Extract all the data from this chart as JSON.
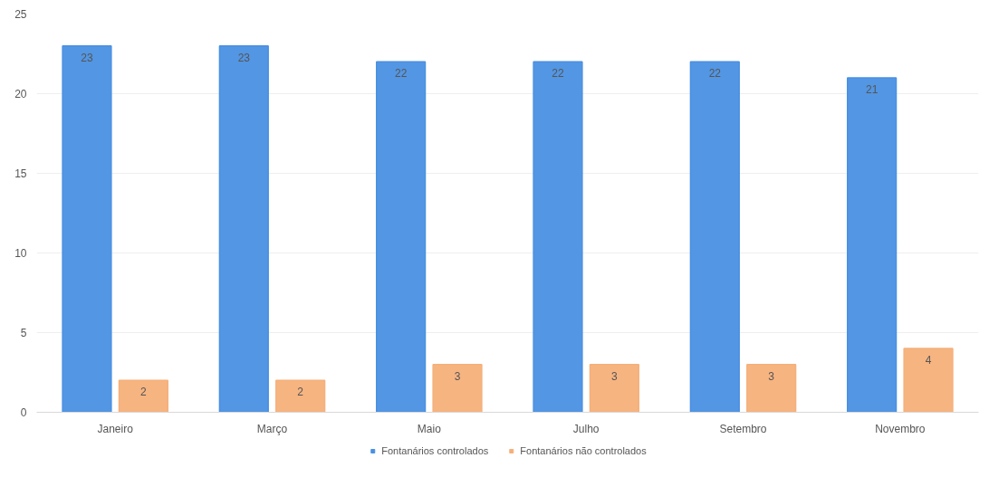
{
  "chart_data": {
    "type": "bar",
    "categories": [
      "Janeiro",
      "Março",
      "Maio",
      "Julho",
      "Setembro",
      "Novembro"
    ],
    "series": [
      {
        "name": "Fontanários controlados",
        "color": "#4a90e2",
        "values": [
          23,
          23,
          22,
          22,
          22,
          21
        ]
      },
      {
        "name": "Fontanários não controlados",
        "color": "#f5b07a",
        "values": [
          2,
          2,
          3,
          3,
          3,
          4
        ]
      }
    ],
    "ylim": [
      0,
      25
    ],
    "yticks": [
      0,
      5,
      10,
      15,
      20,
      25
    ],
    "grid": "y",
    "legend": "bottom",
    "data_labels": true
  }
}
